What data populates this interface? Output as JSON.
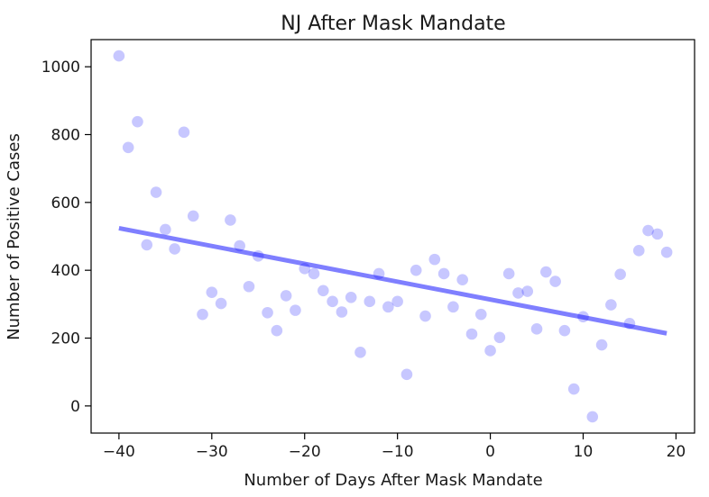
{
  "chart_data": {
    "type": "scatter",
    "title": "NJ After Mask Mandate",
    "xlabel": "Number of Days After Mask Mandate",
    "ylabel": "Number of Positive Cases",
    "xlim": [
      -43,
      22
    ],
    "ylim": [
      -80,
      1080
    ],
    "xticks": [
      -40,
      -30,
      -20,
      -10,
      0,
      10,
      20
    ],
    "xtick_labels": [
      "−40",
      "−30",
      "−20",
      "−10",
      "0",
      "10",
      "20"
    ],
    "yticks": [
      0,
      200,
      400,
      600,
      800,
      1000
    ],
    "ytick_labels": [
      "0",
      "200",
      "400",
      "600",
      "800",
      "1000"
    ],
    "grid": false,
    "series": [
      {
        "type": "scatter",
        "color": "#0000ff",
        "opacity": 0.22,
        "points": [
          [
            -40,
            1032
          ],
          [
            -39,
            762
          ],
          [
            -38,
            838
          ],
          [
            -37,
            475
          ],
          [
            -36,
            630
          ],
          [
            -35,
            520
          ],
          [
            -34,
            463
          ],
          [
            -33,
            807
          ],
          [
            -32,
            560
          ],
          [
            -31,
            270
          ],
          [
            -30,
            335
          ],
          [
            -29,
            302
          ],
          [
            -28,
            548
          ],
          [
            -27,
            472
          ],
          [
            -26,
            352
          ],
          [
            -25,
            442
          ],
          [
            -24,
            275
          ],
          [
            -23,
            222
          ],
          [
            -22,
            325
          ],
          [
            -21,
            282
          ],
          [
            -20,
            405
          ],
          [
            -19,
            390
          ],
          [
            -18,
            340
          ],
          [
            -17,
            308
          ],
          [
            -16,
            277
          ],
          [
            -15,
            320
          ],
          [
            -14,
            158
          ],
          [
            -13,
            308
          ],
          [
            -12,
            390
          ],
          [
            -11,
            292
          ],
          [
            -10,
            308
          ],
          [
            -9,
            93
          ],
          [
            -8,
            400
          ],
          [
            -7,
            265
          ],
          [
            -6,
            432
          ],
          [
            -5,
            390
          ],
          [
            -4,
            292
          ],
          [
            -3,
            372
          ],
          [
            -2,
            212
          ],
          [
            -1,
            270
          ],
          [
            0,
            163
          ],
          [
            1,
            202
          ],
          [
            2,
            390
          ],
          [
            3,
            333
          ],
          [
            4,
            338
          ],
          [
            5,
            227
          ],
          [
            6,
            395
          ],
          [
            7,
            367
          ],
          [
            8,
            222
          ],
          [
            9,
            50
          ],
          [
            10,
            263
          ],
          [
            11,
            -32
          ],
          [
            12,
            180
          ],
          [
            13,
            298
          ],
          [
            14,
            388
          ],
          [
            15,
            243
          ],
          [
            16,
            458
          ],
          [
            17,
            517
          ],
          [
            18,
            507
          ],
          [
            19,
            453
          ]
        ]
      },
      {
        "type": "line",
        "color": "#0000ff",
        "opacity": 0.5,
        "x": [
          -40,
          19
        ],
        "y": [
          524,
          214
        ]
      }
    ]
  }
}
